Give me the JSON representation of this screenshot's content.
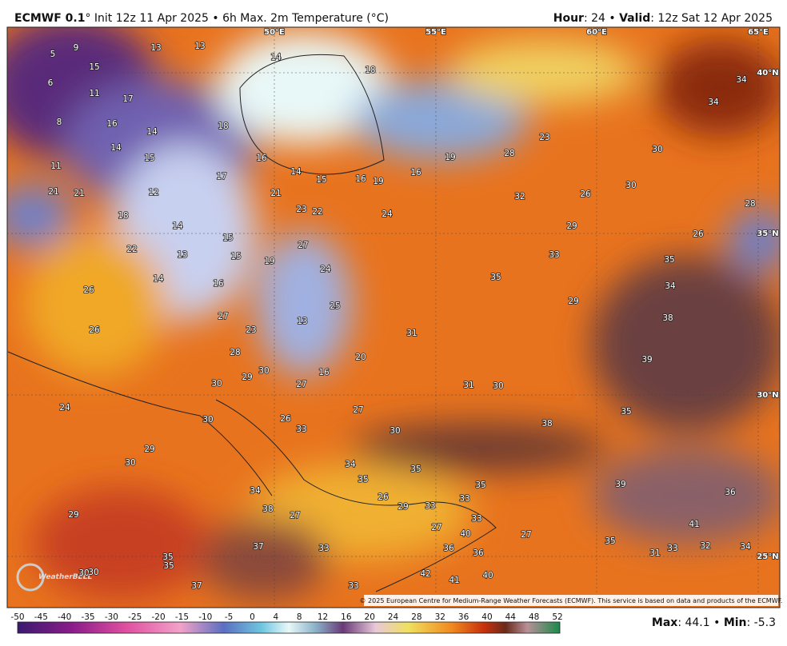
{
  "header": {
    "model": "ECMWF 0.1",
    "description": "° Init 12z 11 Apr 2025 • 6h Max. 2m Temperature (°C)",
    "hour_label": "Hour",
    "hour_value": ": 24 •",
    "valid_label": "Valid",
    "valid_value": ": 12z Sat 12 Apr 2025"
  },
  "map": {
    "longitude_labels": [
      "50°E",
      "55°E",
      "60°E",
      "65°E"
    ],
    "latitude_labels": [
      "40°N",
      "35°N",
      "30°N",
      "25°N"
    ],
    "temperature_labels": [
      5,
      9,
      15,
      13,
      13,
      14,
      18,
      34,
      6,
      11,
      17,
      34,
      8,
      16,
      14,
      18,
      14,
      15,
      16,
      14,
      15,
      16,
      19,
      16,
      19,
      28,
      23,
      30,
      11,
      21,
      21,
      12,
      17,
      21,
      22,
      23,
      24,
      32,
      26,
      30,
      28,
      18,
      14,
      29,
      26,
      15,
      27,
      22,
      13,
      15,
      19,
      24,
      33,
      35,
      35,
      34,
      14,
      26,
      16,
      25,
      29,
      27,
      13,
      23,
      38,
      26,
      31,
      28,
      20,
      39,
      16,
      29,
      30,
      31,
      30,
      30,
      27,
      24,
      30,
      26,
      27,
      33,
      38,
      35,
      30,
      29,
      30,
      34,
      35,
      35,
      35,
      39,
      36,
      34,
      26,
      29,
      33,
      33,
      38,
      27,
      33,
      29,
      27,
      27,
      41,
      35,
      31,
      33,
      32,
      34,
      37,
      33,
      36,
      35,
      35,
      40,
      36,
      30,
      30,
      42,
      41,
      40,
      37,
      33
    ],
    "logo": "WeatherBELL",
    "copyright": "© 2025 European Centre for Medium-Range Weather Forecasts (ECMWF). This service is based on data and products of the ECMWF."
  },
  "colorbar": {
    "ticks": [
      -50,
      -45,
      -40,
      -35,
      -30,
      -25,
      -20,
      -15,
      -10,
      -5,
      0,
      4,
      8,
      12,
      16,
      20,
      24,
      28,
      32,
      36,
      40,
      44,
      48,
      52
    ]
  },
  "footer": {
    "max_label": "Max",
    "max_value": ": 44.1 •",
    "min_label": "Min",
    "min_value": ": -5.3"
  }
}
